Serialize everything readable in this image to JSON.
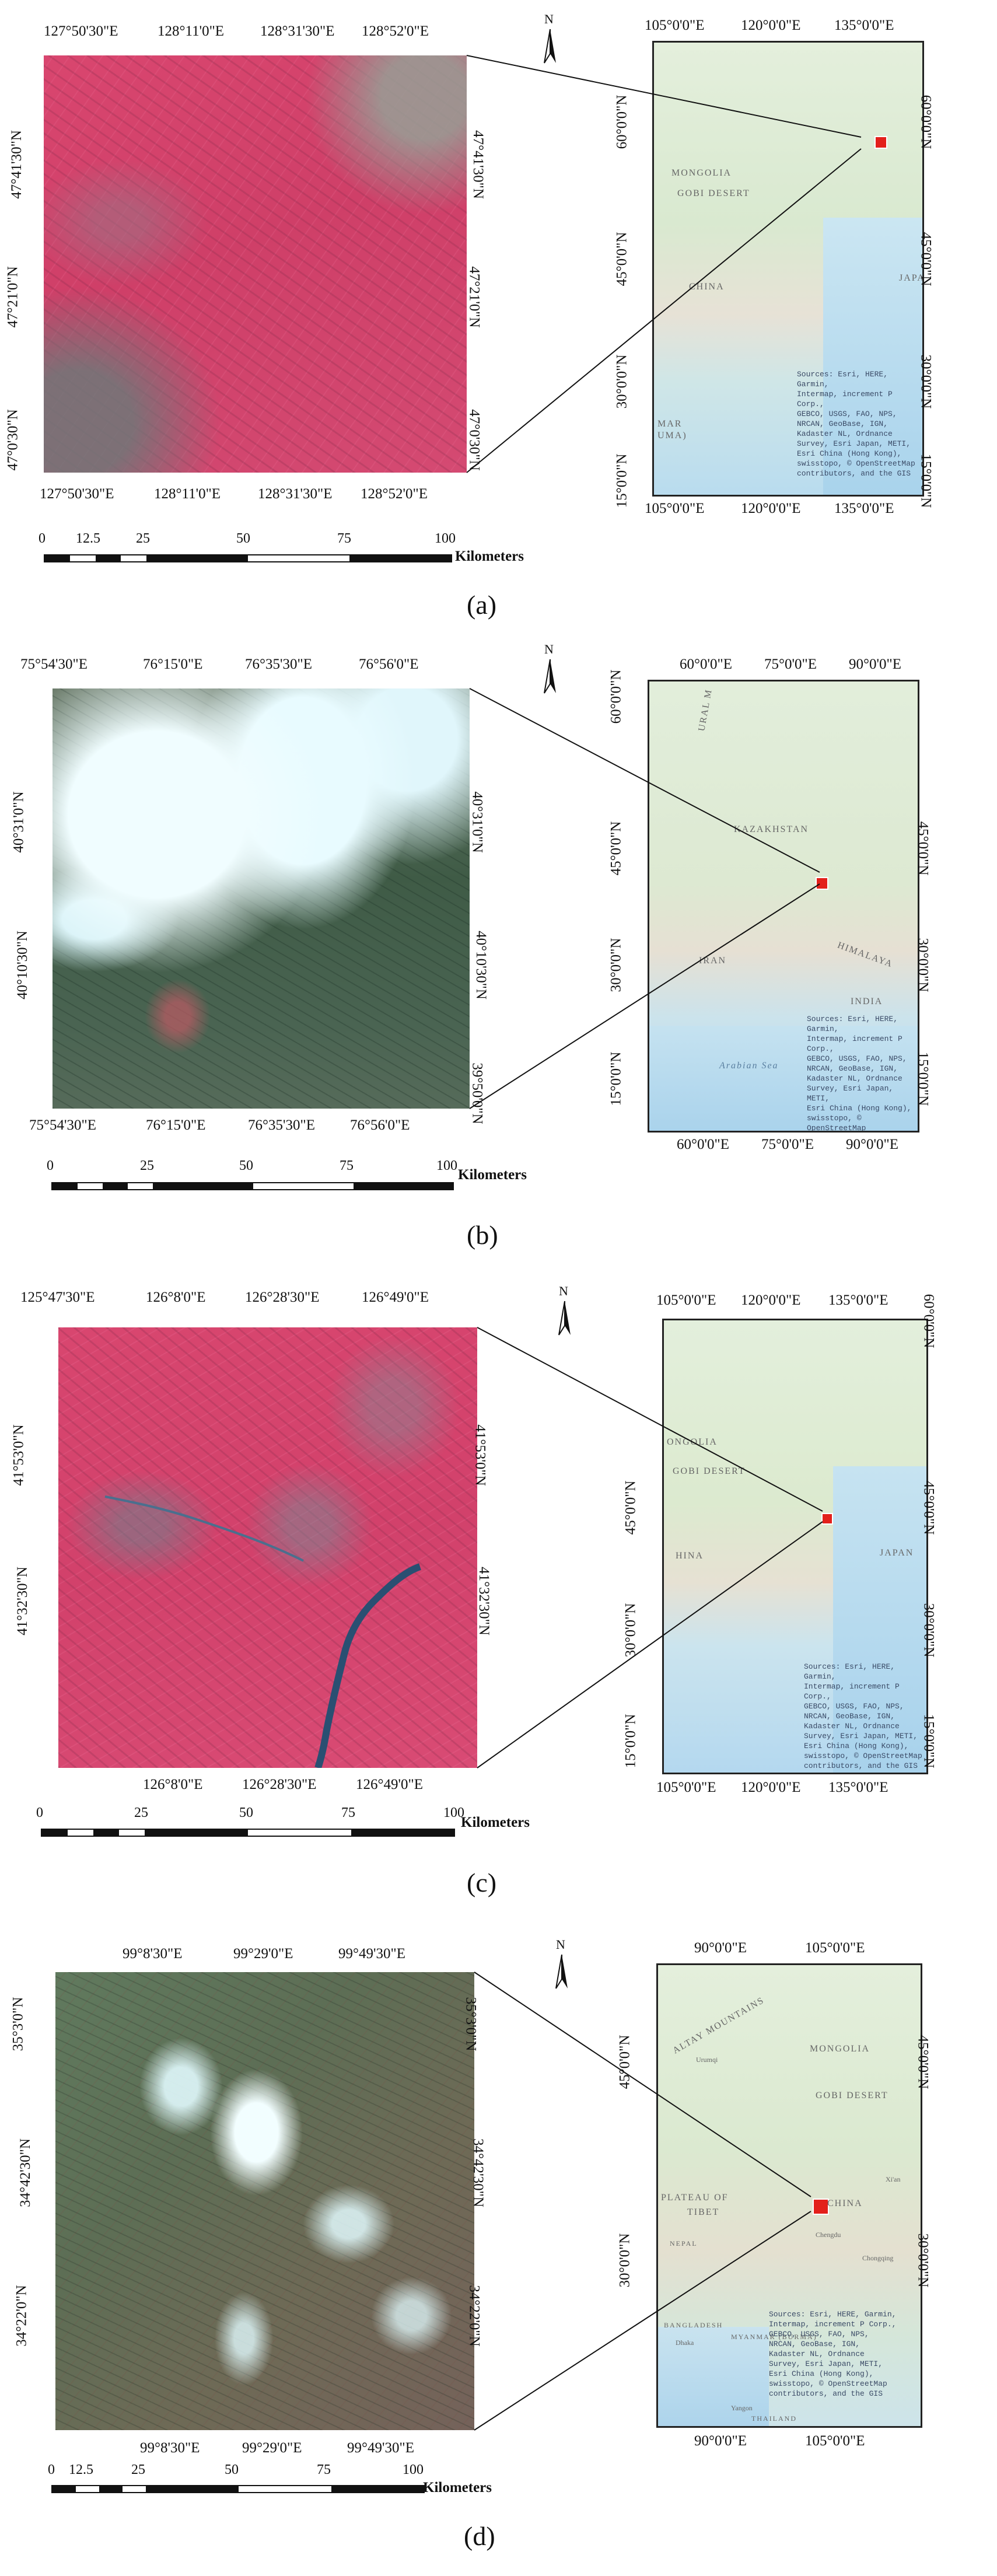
{
  "panels": [
    {
      "caption": "(a)",
      "top_ticks": [
        "127°50'30\"E",
        "128°11'0\"E",
        "128°31'30\"E",
        "128°52'0\"E"
      ],
      "bottom_ticks": [
        "127°50'30\"E",
        "128°11'0\"E",
        "128°31'30\"E",
        "128°52'0\"E"
      ],
      "left_ticks": [
        "47°41'30\"N",
        "47°21'0\"N",
        "47°0'30\"N"
      ],
      "right_ticks": [
        "47°41'30\"N",
        "47°21'0\"N",
        "47°0'30\"N"
      ],
      "scale_labels": [
        "0",
        "12.5",
        "25",
        "50",
        "75",
        "100"
      ],
      "scale_units": "Kilometers",
      "inset": {
        "top_ticks": [
          "105°0'0\"E",
          "120°0'0\"E",
          "135°0'0\"E"
        ],
        "bottom_ticks": [
          "105°0'0\"E",
          "120°0'0\"E",
          "135°0'0\"E"
        ],
        "left_ticks": [
          "60°0'0\"N",
          "45°0'0\"N",
          "30°0'0\"N",
          "15°0'0\"N"
        ],
        "right_ticks": [
          "60°0'0\"N",
          "45°0'0\"N",
          "30°0'0\"N",
          "15°0'0\"N"
        ],
        "labels": [
          "MONGOLIA",
          "GOBI DESERT",
          "CHINA",
          "JAPA",
          "MAR",
          "UMA)"
        ],
        "attribution": "Sources: Esri, HERE, Garmin,\nIntermap, increment P Corp.,\nGEBCO, USGS, FAO, NPS,\nNRCAN, GeoBase, IGN,\nKadaster NL, Ordnance\nSurvey, Esri Japan, METI,\nEsri China (Hong Kong),\nswisstopo, © OpenStreetMap\ncontributors, and the GIS"
      }
    },
    {
      "caption": "(b)",
      "top_ticks": [
        "75°54'30\"E",
        "76°15'0\"E",
        "76°35'30\"E",
        "76°56'0\"E"
      ],
      "bottom_ticks": [
        "75°54'30\"E",
        "76°15'0\"E",
        "76°35'30\"E",
        "76°56'0\"E"
      ],
      "left_ticks": [
        "40°31'0\"N",
        "40°10'30\"N"
      ],
      "right_ticks": [
        "40°31'0\"N",
        "40°10'30\"N",
        "39°50'0\"N"
      ],
      "scale_labels": [
        "0",
        "25",
        "50",
        "75",
        "100"
      ],
      "scale_units": "Kilometers",
      "inset": {
        "top_ticks": [
          "60°0'0\"E",
          "75°0'0\"E",
          "90°0'0\"E"
        ],
        "bottom_ticks": [
          "60°0'0\"E",
          "75°0'0\"E",
          "90°0'0\"E"
        ],
        "left_ticks": [
          "60°0'0\"N",
          "45°0'0\"N",
          "30°0'0\"N",
          "15°0'0\"N"
        ],
        "right_ticks": [
          "45°0'0\"N",
          "30°0'0\"N",
          "15°0'0\"N"
        ],
        "labels": [
          "URAL M",
          "KAZAKHSTAN",
          "IRAN",
          "HIMALAYA",
          "INDIA",
          "Arabian Sea"
        ],
        "attribution": "Sources: Esri, HERE, Garmin,\nIntermap, increment P Corp.,\nGEBCO, USGS, FAO, NPS,\nNRCAN, GeoBase, IGN,\nKadaster NL, Ordnance\nSurvey, Esri Japan, METI,\nEsri China (Hong Kong),\nswisstopo, © OpenStreetMap\ncontributors, and the GIS"
      }
    },
    {
      "caption": "(c)",
      "top_ticks": [
        "125°47'30\"E",
        "126°8'0\"E",
        "126°28'30\"E",
        "126°49'0\"E"
      ],
      "bottom_ticks": [
        "126°8'0\"E",
        "126°28'30\"E",
        "126°49'0\"E"
      ],
      "left_ticks": [
        "41°53'0\"N",
        "41°32'30\"N"
      ],
      "right_ticks": [
        "41°53'0\"N",
        "41°32'30\"N"
      ],
      "scale_labels": [
        "0",
        "25",
        "50",
        "75",
        "100"
      ],
      "scale_units": "Kilometers",
      "inset": {
        "top_ticks": [
          "105°0'0\"E",
          "120°0'0\"E",
          "135°0'0\"E"
        ],
        "bottom_ticks": [
          "105°0'0\"E",
          "120°0'0\"E",
          "135°0'0\"E"
        ],
        "left_ticks": [
          "45°0'0\"N",
          "30°0'0\"N",
          "15°0'0\"N"
        ],
        "right_ticks": [
          "60°0'0\"N",
          "45°0'0\"N",
          "30°0'0\"N",
          "15°0'0\"N"
        ],
        "labels": [
          "ONGOLIA",
          "GOBI DESERT",
          "HINA",
          "JAPAN"
        ],
        "attribution": "Sources: Esri, HERE, Garmin,\nIntermap, increment P Corp.,\nGEBCO, USGS, FAO, NPS,\nNRCAN, GeoBase, IGN,\nKadaster NL, Ordnance\nSurvey, Esri Japan, METI,\nEsri China (Hong Kong),\nswisstopo, © OpenStreetMap\ncontributors, and the GIS"
      }
    },
    {
      "caption": "(d)",
      "top_ticks": [
        "99°8'30\"E",
        "99°29'0\"E",
        "99°49'30\"E"
      ],
      "bottom_ticks": [
        "99°8'30\"E",
        "99°29'0\"E",
        "99°49'30\"E"
      ],
      "left_ticks": [
        "35°3'0\"N",
        "34°42'30\"N",
        "34°22'0\"N"
      ],
      "right_ticks": [
        "35°3'0\"N",
        "34°42'30\"N",
        "34°22'0\"N"
      ],
      "scale_labels": [
        "0",
        "12.5",
        "25",
        "50",
        "75",
        "100"
      ],
      "scale_units": "Kilometers",
      "inset": {
        "top_ticks": [
          "90°0'0\"E",
          "105°0'0\"E"
        ],
        "bottom_ticks": [
          "90°0'0\"E",
          "105°0'0\"E"
        ],
        "left_ticks": [
          "45°0'0\"N",
          "30°0'0\"N"
        ],
        "right_ticks": [
          "45°0'0\"N",
          "30°0'0\"N"
        ],
        "labels": [
          "ALTAY MOUNTAINS",
          "MONGOLIA",
          "GOBI DESERT",
          "PLATEAU OF",
          "TIBET",
          "CHINA",
          "Urumqi",
          "Chengdu",
          "Chongqing",
          "Xi'an",
          "NEPAL",
          "BANGLADESH",
          "MYANMAR (BURMA)",
          "Dhaka",
          "THAILAND",
          "Yangon"
        ],
        "attribution": "Sources: Esri, HERE, Garmin,\nIntermap, increment P Corp.,\nGEBCO, USGS, FAO, NPS,\nNRCAN, GeoBase, IGN,\nKadaster NL, Ordnance\nSurvey, Esri Japan, METI,\nEsri China (Hong Kong),\nswisstopo, © OpenStreetMap\ncontributors, and the GIS"
      }
    }
  ],
  "north_label": "N",
  "colors": {
    "false_color_red": "#d8466e",
    "dark_terrain": "#3e5a45",
    "snow": "#eafcff",
    "basemap_land": "#dcebd5",
    "basemap_water": "#bfe0f2",
    "marker": "#e3201b"
  }
}
